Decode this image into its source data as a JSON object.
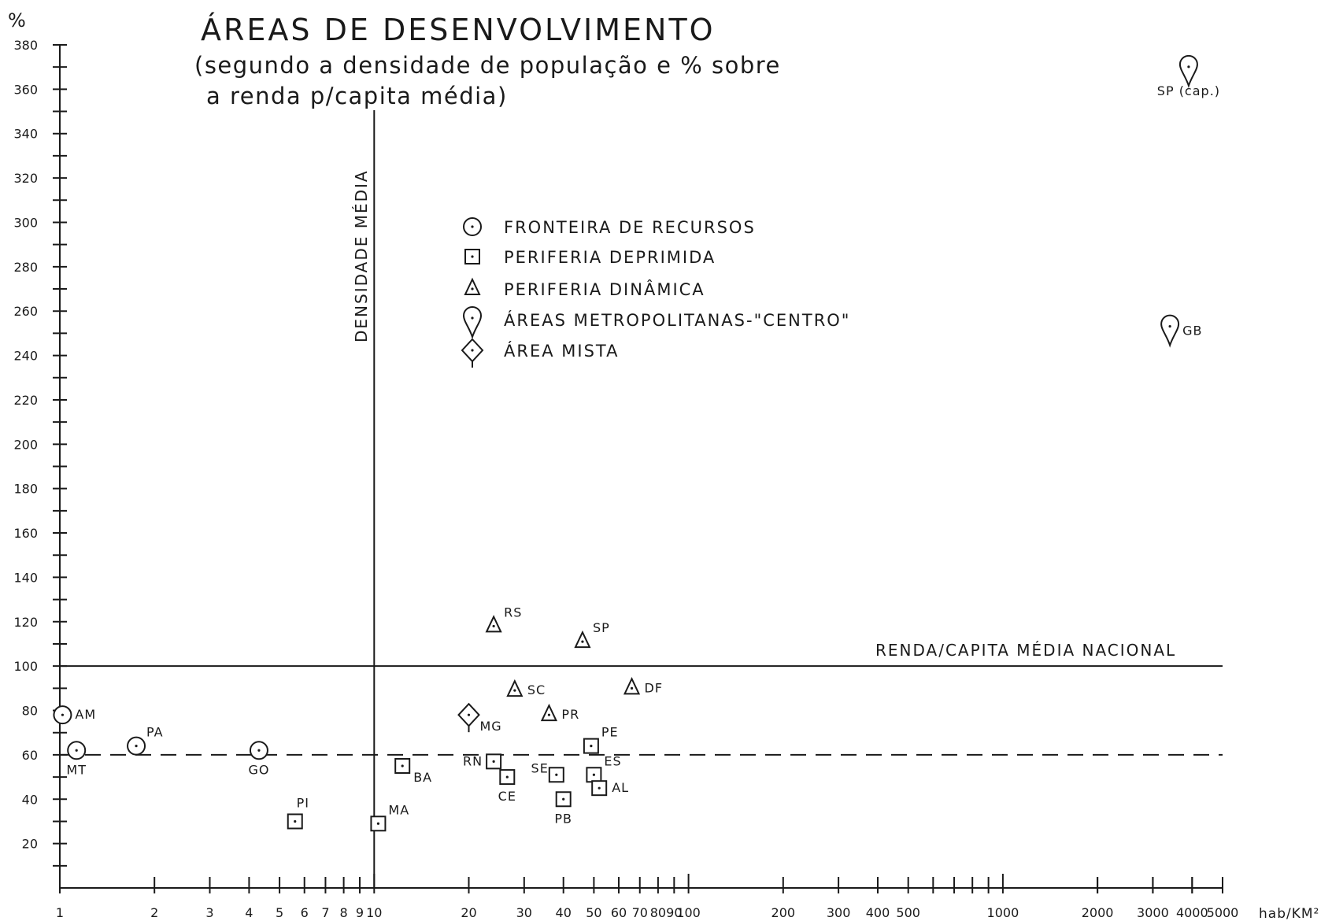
{
  "chart_data": {
    "type": "scatter",
    "title": "ÁREAS DE DESENVOLVIMENTO",
    "subtitle_lines": [
      "(segundo a densidade de população e % sobre",
      "a renda p/capita média)"
    ],
    "x_scale": "log",
    "xlim": [
      1,
      5000
    ],
    "ylim": [
      0,
      380
    ],
    "ylabel": "%",
    "xlabel": "hab/KM²",
    "y_ticks": [
      20,
      40,
      60,
      80,
      100,
      120,
      140,
      160,
      180,
      200,
      220,
      240,
      260,
      280,
      300,
      320,
      340,
      360,
      380
    ],
    "x_tick_labels": [
      {
        "v": 1,
        "t": "1"
      },
      {
        "v": 2,
        "t": "2"
      },
      {
        "v": 3,
        "t": "3"
      },
      {
        "v": 4,
        "t": "4"
      },
      {
        "v": 5,
        "t": "5"
      },
      {
        "v": 6,
        "t": "6"
      },
      {
        "v": 7,
        "t": "7"
      },
      {
        "v": 8,
        "t": "8"
      },
      {
        "v": 9,
        "t": "9"
      },
      {
        "v": 10,
        "t": "10"
      },
      {
        "v": 20,
        "t": "20"
      },
      {
        "v": 30,
        "t": "30"
      },
      {
        "v": 40,
        "t": "40"
      },
      {
        "v": 50,
        "t": "50"
      },
      {
        "v": 60,
        "t": "60"
      },
      {
        "v": 70,
        "t": "70"
      },
      {
        "v": 80,
        "t": "80"
      },
      {
        "v": 90,
        "t": "90"
      },
      {
        "v": 100,
        "t": "100"
      },
      {
        "v": 200,
        "t": "200"
      },
      {
        "v": 300,
        "t": "300"
      },
      {
        "v": 400,
        "t": "400"
      },
      {
        "v": 500,
        "t": "500"
      },
      {
        "v": 1000,
        "t": "1000"
      },
      {
        "v": 2000,
        "t": "2000"
      },
      {
        "v": 3000,
        "t": "3000"
      },
      {
        "v": 4000,
        "t": "4000"
      },
      {
        "v": 5000,
        "t": "5000"
      }
    ],
    "reference_lines": {
      "density_mean": {
        "x": 10,
        "label": "DENSIDADE MÉDIA"
      },
      "income_national": {
        "y": 100,
        "label": "RENDA/CAPITA MÉDIA NACIONAL"
      },
      "dashed_level": {
        "y": 60
      }
    },
    "legend": {
      "position": "upper-center",
      "entries": [
        {
          "shape": "circle",
          "label": "FRONTEIRA DE RECURSOS"
        },
        {
          "shape": "square",
          "label": "PERIFERIA DEPRIMIDA"
        },
        {
          "shape": "triangle",
          "label": "PERIFERIA DINÂMICA"
        },
        {
          "shape": "drop",
          "label": "ÁREAS METROPOLITANAS-\"CENTRO\""
        },
        {
          "shape": "diamond",
          "label": "ÁREA MISTA"
        }
      ]
    },
    "points": [
      {
        "label": "AM",
        "category": "circle",
        "x": 1.02,
        "y": 78,
        "lab": "right"
      },
      {
        "label": "MT",
        "category": "circle",
        "x": 1.13,
        "y": 62,
        "lab": "below"
      },
      {
        "label": "PA",
        "category": "circle",
        "x": 1.75,
        "y": 64,
        "lab": "upright"
      },
      {
        "label": "GO",
        "category": "circle",
        "x": 4.3,
        "y": 62,
        "lab": "below"
      },
      {
        "label": "PI",
        "category": "square",
        "x": 5.6,
        "y": 30,
        "lab": "up"
      },
      {
        "label": "MA",
        "category": "square",
        "x": 10.3,
        "y": 29,
        "lab": "upright"
      },
      {
        "label": "BA",
        "category": "square",
        "x": 12.3,
        "y": 55,
        "lab": "lowright"
      },
      {
        "label": "RN",
        "category": "square",
        "x": 24,
        "y": 57,
        "lab": "left"
      },
      {
        "label": "CE",
        "category": "square",
        "x": 26.5,
        "y": 50,
        "lab": "below"
      },
      {
        "label": "SE",
        "category": "square",
        "x": 38,
        "y": 51,
        "lab": "upleft"
      },
      {
        "label": "PB",
        "category": "square",
        "x": 40,
        "y": 40,
        "lab": "below"
      },
      {
        "label": "PE",
        "category": "square",
        "x": 49,
        "y": 64,
        "lab": "upright"
      },
      {
        "label": "ES",
        "category": "square",
        "x": 50,
        "y": 51,
        "lab": "upright"
      },
      {
        "label": "AL",
        "category": "square",
        "x": 52,
        "y": 45,
        "lab": "right"
      },
      {
        "label": "RS",
        "category": "triangle",
        "x": 24,
        "y": 118,
        "lab": "upright"
      },
      {
        "label": "SP",
        "category": "triangle",
        "x": 46,
        "y": 111,
        "lab": "upright"
      },
      {
        "label": "SC",
        "category": "triangle",
        "x": 28,
        "y": 89,
        "lab": "right"
      },
      {
        "label": "PR",
        "category": "triangle",
        "x": 36,
        "y": 78,
        "lab": "right"
      },
      {
        "label": "DF",
        "category": "triangle",
        "x": 66,
        "y": 90,
        "lab": "right"
      },
      {
        "label": "MG",
        "category": "diamond",
        "x": 20,
        "y": 78,
        "lab": "lowright"
      },
      {
        "label": "SP (cap.)",
        "category": "drop",
        "x": 3900,
        "y": 368,
        "lab": "below"
      },
      {
        "label": "GB",
        "category": "drop",
        "x": 3400,
        "y": 251,
        "lab": "right"
      }
    ]
  }
}
